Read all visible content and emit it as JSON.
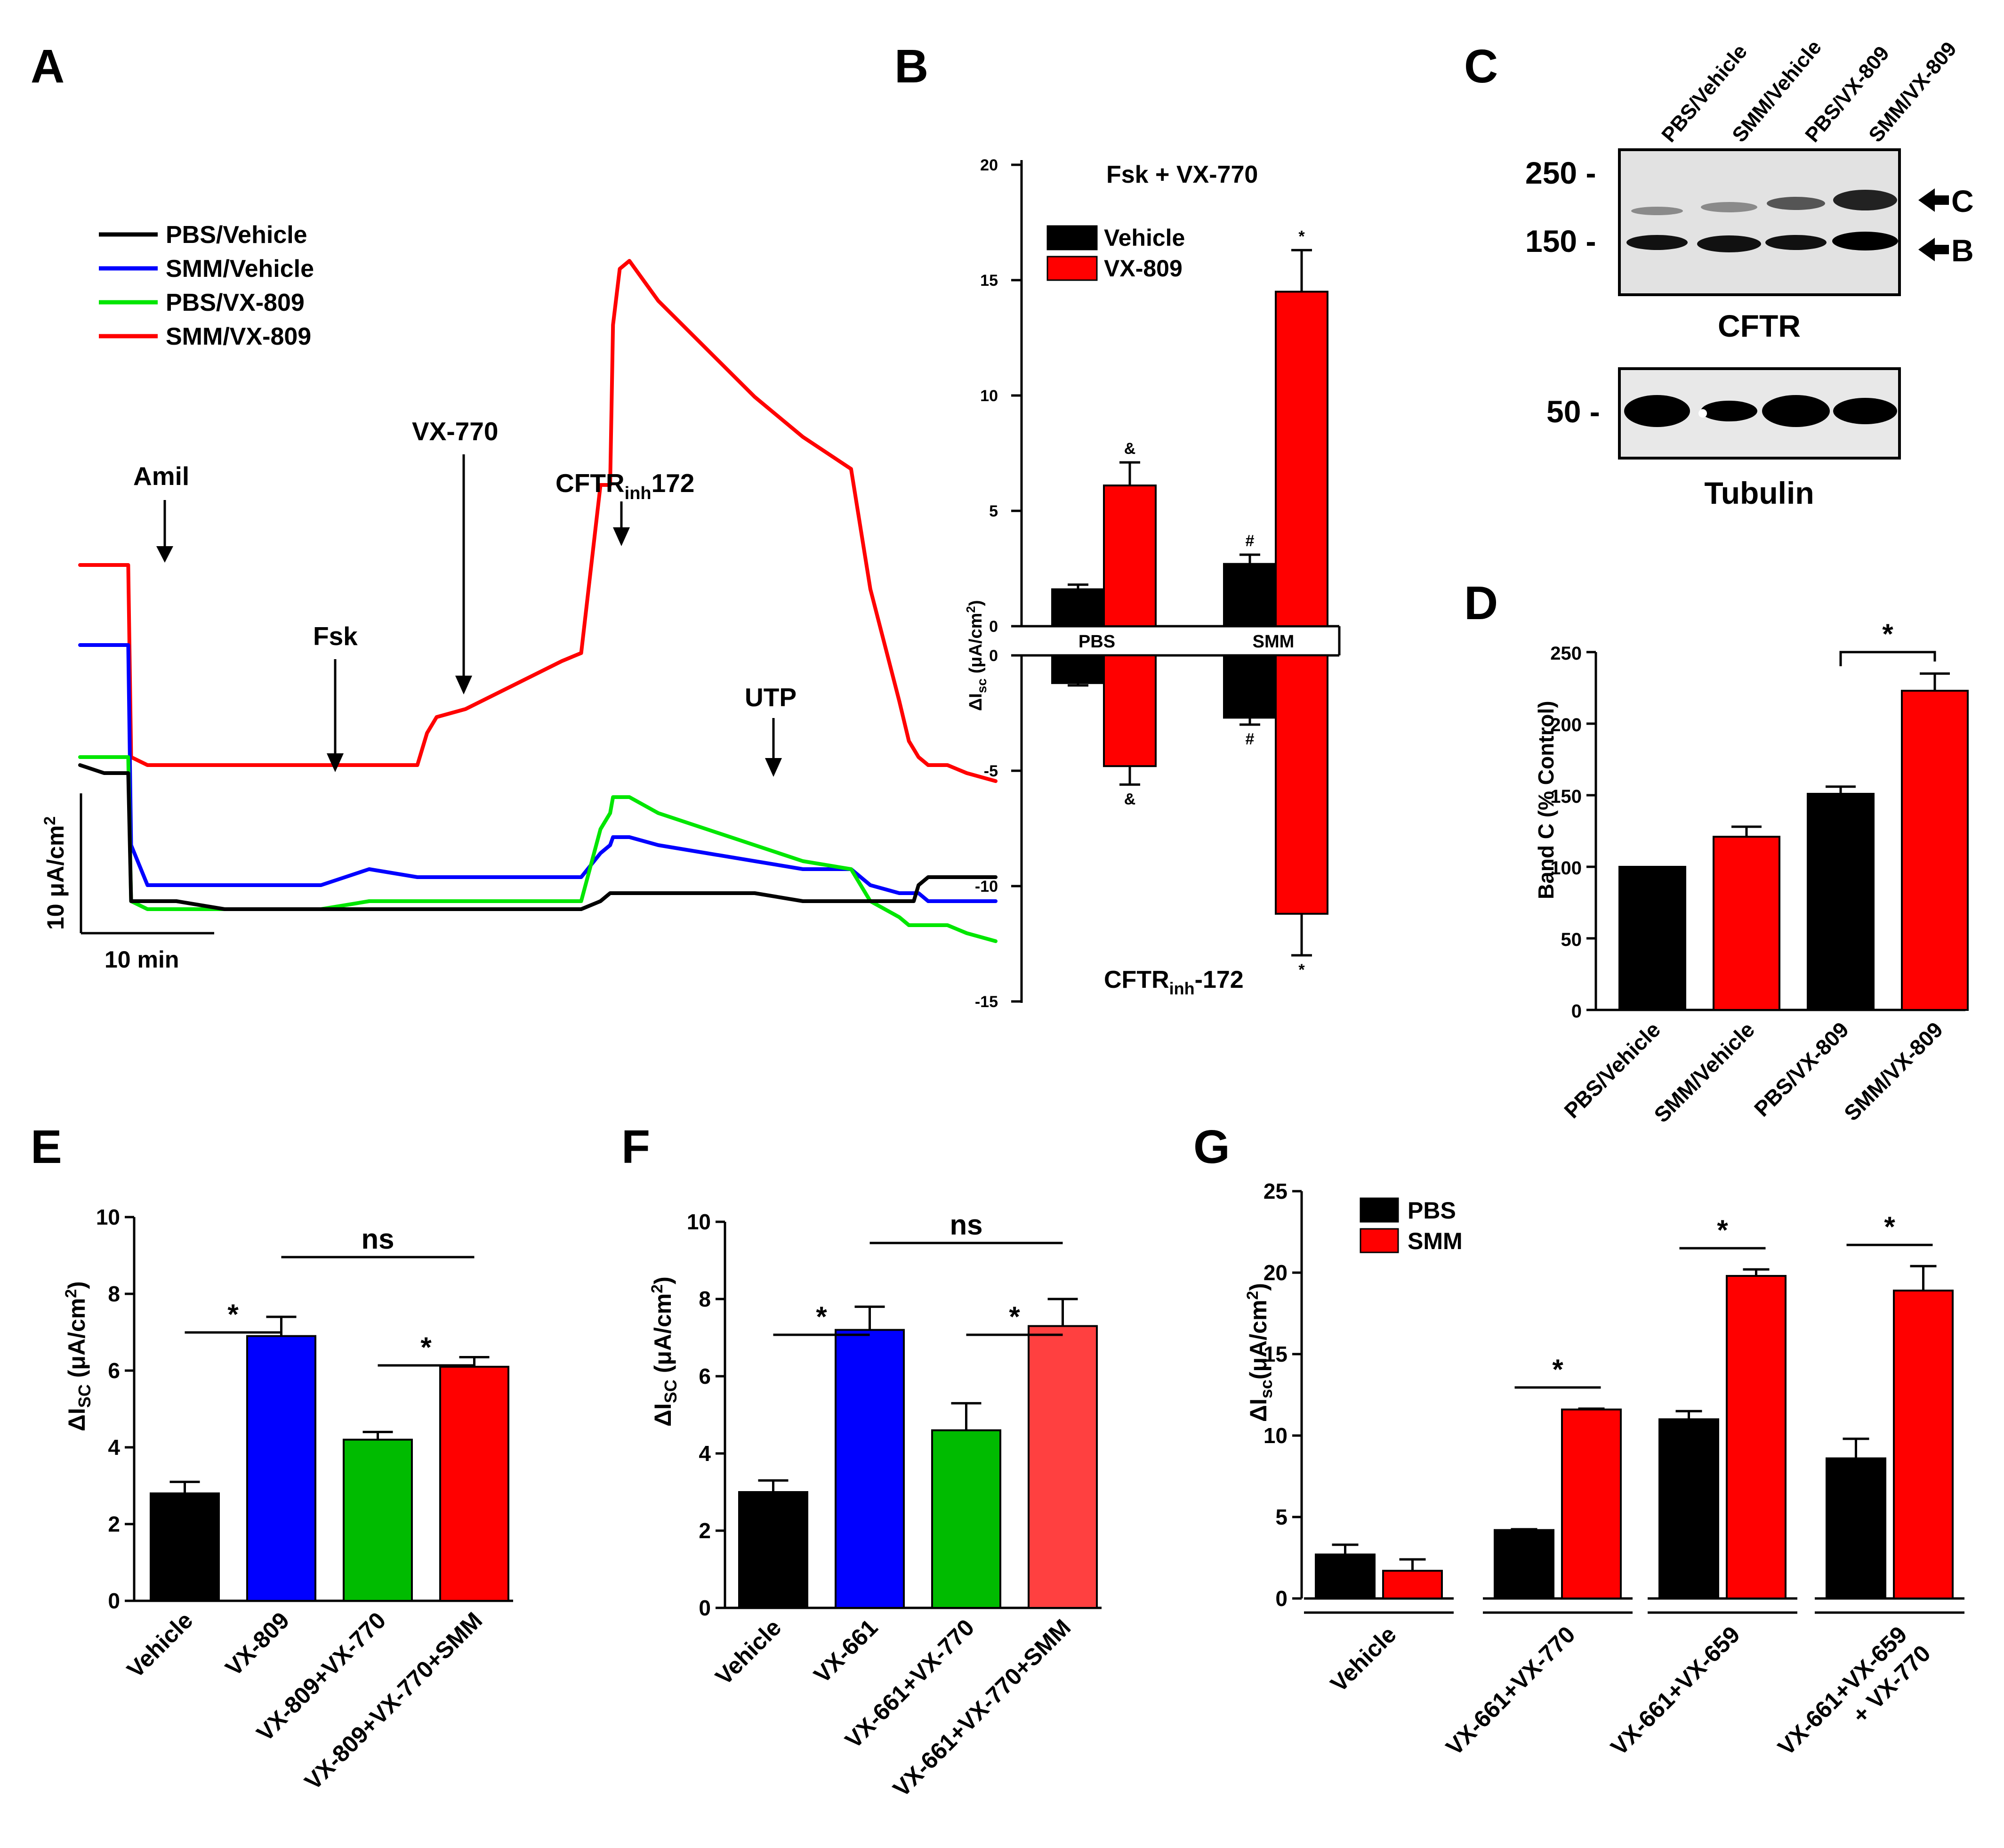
{
  "panel_labels": {
    "A": "A",
    "B": "B",
    "C": "C",
    "D": "D",
    "E": "E",
    "F": "F",
    "G": "G"
  },
  "colors": {
    "black": "#000000",
    "blue": "#0000ff",
    "green": "#00e600",
    "red": "#ff0000",
    "light_red": "#ff4040"
  },
  "chart_data": [
    {
      "id": "A",
      "type": "line",
      "title": "",
      "legend": [
        {
          "name": "PBS/Vehicle",
          "color": "#000000"
        },
        {
          "name": "SMM/Vehicle",
          "color": "#0000ff"
        },
        {
          "name": "PBS/VX-809",
          "color": "#00e600"
        },
        {
          "name": "SMM/VX-809",
          "color": "#ff0000"
        }
      ],
      "annotations": {
        "amil": "Amil",
        "fsk": "Fsk",
        "vx770": "VX-770",
        "cftr_main": "CFTR",
        "cftr_sub": "inh",
        "cftr_tail": "172",
        "utp": "UTP"
      },
      "scalebar": {
        "y_label": "10 μA/cm",
        "y_sup": "2",
        "x_label": "10 min"
      },
      "x": [
        0,
        2.5,
        5,
        5.3,
        7,
        10,
        15,
        20,
        25,
        30,
        35,
        36,
        37,
        40,
        45,
        50,
        52,
        54,
        55,
        55.3,
        56,
        57,
        60,
        65,
        70,
        75,
        80,
        82,
        85,
        86,
        86.5,
        87,
        88,
        90,
        92,
        95
      ],
      "series": [
        {
          "name": "SMM/VX-809",
          "values": [
            25,
            25,
            25,
            1,
            0,
            0,
            0,
            0,
            0,
            0,
            0,
            4,
            6,
            7,
            10,
            13,
            14,
            35,
            35,
            55,
            62,
            63,
            58,
            52,
            46,
            41,
            37,
            22,
            8,
            3,
            2,
            1,
            0,
            0,
            -1,
            -2
          ]
        },
        {
          "name": "SMM/Vehicle",
          "values": [
            15,
            15,
            15,
            -10,
            -15,
            -15,
            -15,
            -15,
            -15,
            -13,
            -14,
            -14,
            -14,
            -14,
            -14,
            -14,
            -14,
            -11,
            -10,
            -9,
            -9,
            -9,
            -10,
            -11,
            -12,
            -13,
            -13,
            -15,
            -16,
            -16,
            -16,
            -16,
            -17,
            -17,
            -17,
            -17
          ]
        },
        {
          "name": "PBS/VX-809",
          "values": [
            1,
            1,
            1,
            -17,
            -18,
            -18,
            -18,
            -18,
            -18,
            -17,
            -17,
            -17,
            -17,
            -17,
            -17,
            -17,
            -17,
            -8,
            -6,
            -4,
            -4,
            -4,
            -6,
            -8,
            -10,
            -12,
            -13,
            -17,
            -19,
            -20,
            -20,
            -20,
            -20,
            -20,
            -21,
            -22
          ]
        },
        {
          "name": "PBS/Vehicle",
          "values": [
            0,
            -1,
            -1,
            -17,
            -17,
            -17,
            -18,
            -18,
            -18,
            -18,
            -18,
            -18,
            -18,
            -18,
            -18,
            -18,
            -18,
            -17,
            -16,
            -16,
            -16,
            -16,
            -16,
            -16,
            -16,
            -17,
            -17,
            -17,
            -17,
            -17,
            -17,
            -15,
            -14,
            -14,
            -14,
            -14
          ]
        }
      ]
    },
    {
      "id": "B",
      "type": "bar",
      "title": "Fsk + VX-770",
      "bottom_title": "CFTR",
      "bottom_title_sub": "inh",
      "bottom_title_tail": "-172",
      "ylabel": "ΔI",
      "ylabel_sub": "sc",
      "ylabel_tail": " (μA/cm",
      "ylabel_sup": "2",
      "ylabel_end": ")",
      "ylim_top": [
        0,
        20
      ],
      "ylim_bottom": [
        -15,
        0
      ],
      "yticks_top": [
        "20",
        "15",
        "10",
        "5",
        "0"
      ],
      "yticks_bottom": [
        "0",
        "-5",
        "-10",
        "-15"
      ],
      "categories": [
        "PBS",
        "SMM"
      ],
      "legend": [
        {
          "name": "Vehicle",
          "color": "#000000"
        },
        {
          "name": "VX-809",
          "color": "#ff0000"
        }
      ],
      "series": [
        {
          "name": "Vehicle",
          "up": [
            1.6,
            2.7
          ],
          "up_err": [
            0.2,
            0.4
          ],
          "down": [
            -1.2,
            -2.7
          ],
          "down_err": [
            0.1,
            0.3
          ],
          "up_marks": [
            "",
            "#"
          ],
          "down_marks": [
            "",
            "#"
          ]
        },
        {
          "name": "VX-809",
          "up": [
            6.1,
            14.5
          ],
          "up_err": [
            1.0,
            1.8
          ],
          "down": [
            -4.8,
            -11.2
          ],
          "down_err": [
            0.8,
            1.8
          ],
          "up_marks": [
            "&",
            "*"
          ],
          "down_marks": [
            "&",
            "*"
          ]
        }
      ]
    },
    {
      "id": "C",
      "type": "table",
      "lanes": [
        "PBS/Vehicle",
        "SMM/Vehicle",
        "PBS/VX-809",
        "SMM/VX-809"
      ],
      "blot1": {
        "markers": [
          "250 -",
          "150 -"
        ],
        "arrows": [
          "C",
          "B"
        ],
        "caption": "CFTR"
      },
      "blot2": {
        "markers": [
          "50 -"
        ],
        "caption": "Tubulin"
      }
    },
    {
      "id": "D",
      "type": "bar",
      "ylabel": "Band C (% Control)",
      "ylim": [
        0,
        250
      ],
      "yticks": [
        "0",
        "50",
        "100",
        "150",
        "200",
        "250"
      ],
      "categories": [
        "PBS/Vehicle",
        "SMM/Vehicle",
        "PBS/VX-809",
        "SMM/VX-809"
      ],
      "values": [
        100,
        121,
        151,
        223
      ],
      "errors": [
        0,
        7,
        5,
        12
      ],
      "bar_colors": [
        "#000000",
        "#ff0000",
        "#000000",
        "#ff0000"
      ],
      "significance": [
        {
          "from": 2,
          "to": 3,
          "label": "*"
        }
      ]
    },
    {
      "id": "E",
      "type": "bar",
      "ylabel": "ΔI",
      "ylabel_sub": "SC",
      "ylabel_tail": " (μA/cm",
      "ylabel_sup": "2",
      "ylabel_end": ")",
      "ylim": [
        0,
        10
      ],
      "yticks": [
        "0",
        "2",
        "4",
        "6",
        "8",
        "10"
      ],
      "categories": [
        "Vehicle",
        "VX-809",
        "VX-809+VX-770",
        "VX-809+VX-770+SMM"
      ],
      "values": [
        2.8,
        6.9,
        4.2,
        6.1
      ],
      "errors": [
        0.3,
        0.5,
        0.2,
        0.25
      ],
      "bar_colors": [
        "#000000",
        "#0000ff",
        "#00bb00",
        "#ff0000"
      ],
      "significance": [
        {
          "from": 0,
          "to": 1,
          "label": "*"
        },
        {
          "from": 2,
          "to": 3,
          "label": "*"
        },
        {
          "from": 1,
          "to": 3,
          "label": "ns"
        }
      ]
    },
    {
      "id": "F",
      "type": "bar",
      "ylabel": "ΔI",
      "ylabel_sub": "SC",
      "ylabel_tail": " (μA/cm",
      "ylabel_sup": "2",
      "ylabel_end": ")",
      "ylim": [
        0,
        10
      ],
      "yticks": [
        "0",
        "2",
        "4",
        "6",
        "8",
        "10"
      ],
      "categories": [
        "Vehicle",
        "VX-661",
        "VX-661+VX-770",
        "VX-661+VX-770+SMM"
      ],
      "values": [
        3.0,
        7.2,
        4.6,
        7.3
      ],
      "errors": [
        0.3,
        0.6,
        0.7,
        0.7
      ],
      "bar_colors": [
        "#000000",
        "#0000ff",
        "#00bb00",
        "#ff4040"
      ],
      "significance": [
        {
          "from": 0,
          "to": 1,
          "label": "*"
        },
        {
          "from": 2,
          "to": 3,
          "label": "*"
        },
        {
          "from": 1,
          "to": 3,
          "label": "ns"
        }
      ]
    },
    {
      "id": "G",
      "type": "bar",
      "ylabel": "ΔI",
      "ylabel_sub": "sc",
      "ylabel_tail": "(μA/cm",
      "ylabel_sup": "2",
      "ylabel_end": ")",
      "ylim": [
        0,
        25
      ],
      "yticks": [
        "0",
        "5",
        "10",
        "15",
        "20",
        "25"
      ],
      "categories": [
        "Vehicle",
        "VX-661+VX-770",
        "VX-661+VX-659",
        "VX-661+VX-659"
      ],
      "category_line2": [
        "",
        "",
        "",
        "+ VX-770"
      ],
      "legend": [
        {
          "name": "PBS",
          "color": "#000000"
        },
        {
          "name": "SMM",
          "color": "#ff0000"
        }
      ],
      "series": [
        {
          "name": "PBS",
          "values": [
            2.7,
            4.2,
            11.0,
            8.6
          ],
          "errors": [
            0.6,
            0.05,
            0.5,
            1.2
          ]
        },
        {
          "name": "SMM",
          "values": [
            1.7,
            11.6,
            19.8,
            18.9
          ],
          "errors": [
            0.7,
            0.05,
            0.4,
            1.5
          ]
        }
      ],
      "significance": [
        {
          "group": 1,
          "label": "*"
        },
        {
          "group": 2,
          "label": "*"
        },
        {
          "group": 3,
          "label": "*"
        }
      ]
    }
  ]
}
